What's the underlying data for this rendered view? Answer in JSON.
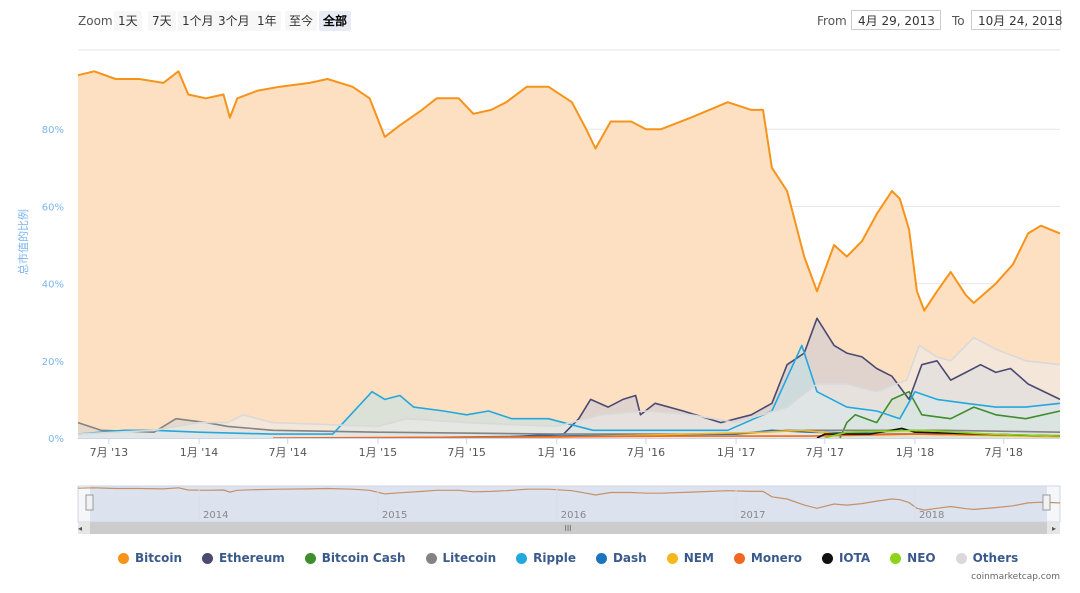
{
  "zoom": {
    "label": "Zoom",
    "buttons": [
      "1天",
      "7天",
      "1个月",
      "3个月",
      "1年",
      "至今",
      "全部"
    ],
    "active": "全部"
  },
  "range": {
    "from_label": "From",
    "from_value": "4月 29, 2013",
    "to_label": "To",
    "to_value": "10月 24, 2018"
  },
  "credit": "coinmarketcap.com",
  "navigator": {
    "year_labels": [
      "2014",
      "2015",
      "2016",
      "2017",
      "2018"
    ],
    "scroll_grip": "III"
  },
  "chart_data": {
    "type": "area",
    "title": "",
    "ylabel": "总市值的比例",
    "ylim": [
      0,
      100
    ],
    "yticks": [
      0,
      20,
      40,
      60,
      80
    ],
    "ytick_labels": [
      "0%",
      "20%",
      "40%",
      "60%",
      "80%"
    ],
    "xlim": [
      "2013-04-29",
      "2018-10-24"
    ],
    "xtick_labels": [
      {
        "date": "2013-07-01",
        "label": "7月 '13"
      },
      {
        "date": "2014-01-01",
        "label": "1月 '14"
      },
      {
        "date": "2014-07-01",
        "label": "7月 '14"
      },
      {
        "date": "2015-01-01",
        "label": "1月 '15"
      },
      {
        "date": "2015-07-01",
        "label": "7月 '15"
      },
      {
        "date": "2016-01-01",
        "label": "1月 '16"
      },
      {
        "date": "2016-07-01",
        "label": "7月 '16"
      },
      {
        "date": "2017-01-01",
        "label": "1月 '17"
      },
      {
        "date": "2017-07-01",
        "label": "7月 '17"
      },
      {
        "date": "2018-01-01",
        "label": "1月 '18"
      },
      {
        "date": "2018-07-01",
        "label": "7月 '18"
      }
    ],
    "grid": true,
    "legend_position": "bottom",
    "series": [
      {
        "name": "Bitcoin",
        "color": "#f7931a",
        "fill": "#fde0c2",
        "points": [
          [
            "2013-04-29",
            94
          ],
          [
            "2013-06-01",
            95
          ],
          [
            "2013-07-15",
            93
          ],
          [
            "2013-09-01",
            93
          ],
          [
            "2013-10-20",
            92
          ],
          [
            "2013-11-20",
            95
          ],
          [
            "2013-12-10",
            89
          ],
          [
            "2014-01-15",
            88
          ],
          [
            "2014-02-20",
            89
          ],
          [
            "2014-03-05",
            83
          ],
          [
            "2014-03-20",
            88
          ],
          [
            "2014-05-01",
            90
          ],
          [
            "2014-06-15",
            91
          ],
          [
            "2014-08-15",
            92
          ],
          [
            "2014-09-20",
            93
          ],
          [
            "2014-11-10",
            91
          ],
          [
            "2014-12-15",
            88
          ],
          [
            "2015-01-15",
            78
          ],
          [
            "2015-02-15",
            81
          ],
          [
            "2015-04-01",
            85
          ],
          [
            "2015-05-01",
            88
          ],
          [
            "2015-06-15",
            88
          ],
          [
            "2015-07-15",
            84
          ],
          [
            "2015-08-20",
            85
          ],
          [
            "2015-09-20",
            87
          ],
          [
            "2015-11-01",
            91
          ],
          [
            "2015-12-15",
            91
          ],
          [
            "2016-02-01",
            87
          ],
          [
            "2016-03-01",
            80
          ],
          [
            "2016-03-20",
            75
          ],
          [
            "2016-04-20",
            82
          ],
          [
            "2016-06-01",
            82
          ],
          [
            "2016-07-01",
            80
          ],
          [
            "2016-08-01",
            80
          ],
          [
            "2016-10-01",
            83
          ],
          [
            "2016-12-15",
            87
          ],
          [
            "2017-02-01",
            85
          ],
          [
            "2017-02-25",
            85
          ],
          [
            "2017-03-15",
            70
          ],
          [
            "2017-04-15",
            64
          ],
          [
            "2017-05-20",
            47
          ],
          [
            "2017-06-15",
            38
          ],
          [
            "2017-07-20",
            50
          ],
          [
            "2017-08-15",
            47
          ],
          [
            "2017-09-15",
            51
          ],
          [
            "2017-10-15",
            58
          ],
          [
            "2017-11-15",
            64
          ],
          [
            "2017-12-01",
            62
          ],
          [
            "2017-12-20",
            54
          ],
          [
            "2018-01-05",
            38
          ],
          [
            "2018-01-20",
            33
          ],
          [
            "2018-02-15",
            38
          ],
          [
            "2018-03-15",
            43
          ],
          [
            "2018-04-15",
            37
          ],
          [
            "2018-05-01",
            35
          ],
          [
            "2018-06-15",
            40
          ],
          [
            "2018-07-20",
            45
          ],
          [
            "2018-08-20",
            53
          ],
          [
            "2018-09-15",
            55
          ],
          [
            "2018-10-24",
            53
          ]
        ]
      },
      {
        "name": "Ethereum",
        "color": "#4a4a72",
        "fill": "#c9c6d6",
        "points": [
          [
            "2015-08-07",
            0
          ],
          [
            "2016-01-15",
            1
          ],
          [
            "2016-02-15",
            5
          ],
          [
            "2016-03-10",
            10
          ],
          [
            "2016-04-15",
            8
          ],
          [
            "2016-05-15",
            10
          ],
          [
            "2016-06-10",
            11
          ],
          [
            "2016-06-20",
            6
          ],
          [
            "2016-07-20",
            9
          ],
          [
            "2016-09-15",
            7
          ],
          [
            "2016-12-01",
            4
          ],
          [
            "2017-02-01",
            6
          ],
          [
            "2017-03-15",
            9
          ],
          [
            "2017-04-15",
            19
          ],
          [
            "2017-05-20",
            22
          ],
          [
            "2017-06-15",
            31
          ],
          [
            "2017-07-20",
            24
          ],
          [
            "2017-08-15",
            22
          ],
          [
            "2017-09-15",
            21
          ],
          [
            "2017-10-15",
            18
          ],
          [
            "2017-11-15",
            16
          ],
          [
            "2017-12-20",
            10
          ],
          [
            "2018-01-15",
            19
          ],
          [
            "2018-02-15",
            20
          ],
          [
            "2018-03-15",
            15
          ],
          [
            "2018-04-15",
            17
          ],
          [
            "2018-05-15",
            19
          ],
          [
            "2018-06-15",
            17
          ],
          [
            "2018-07-15",
            18
          ],
          [
            "2018-08-20",
            14
          ],
          [
            "2018-10-24",
            10
          ]
        ]
      },
      {
        "name": "Bitcoin Cash",
        "color": "#3f8d2c",
        "fill": "#b5d3a6",
        "points": [
          [
            "2017-08-01",
            0
          ],
          [
            "2017-08-15",
            4
          ],
          [
            "2017-09-01",
            6
          ],
          [
            "2017-10-15",
            4
          ],
          [
            "2017-11-15",
            10
          ],
          [
            "2017-12-20",
            12
          ],
          [
            "2018-01-15",
            6
          ],
          [
            "2018-03-15",
            5
          ],
          [
            "2018-05-01",
            8
          ],
          [
            "2018-06-15",
            6
          ],
          [
            "2018-08-15",
            5
          ],
          [
            "2018-10-24",
            7
          ]
        ]
      },
      {
        "name": "Litecoin",
        "color": "#838383",
        "fill": "#d4d4d4",
        "points": [
          [
            "2013-04-29",
            4
          ],
          [
            "2013-06-15",
            2
          ],
          [
            "2013-10-01",
            1.5
          ],
          [
            "2013-11-15",
            5
          ],
          [
            "2014-01-15",
            4
          ],
          [
            "2014-03-01",
            3
          ],
          [
            "2014-06-01",
            2
          ],
          [
            "2015-01-01",
            1.5
          ],
          [
            "2016-01-01",
            1
          ],
          [
            "2017-01-01",
            1
          ],
          [
            "2017-04-15",
            2
          ],
          [
            "2017-06-01",
            2
          ],
          [
            "2017-12-15",
            2
          ],
          [
            "2018-03-01",
            2
          ],
          [
            "2018-10-24",
            1.5
          ]
        ]
      },
      {
        "name": "Ripple",
        "color": "#23a8de",
        "fill": "#c0e2ea",
        "points": [
          [
            "2013-04-29",
            1
          ],
          [
            "2013-08-01",
            2
          ],
          [
            "2013-10-01",
            2
          ],
          [
            "2014-01-01",
            1.5
          ],
          [
            "2014-06-01",
            1
          ],
          [
            "2014-10-01",
            1
          ],
          [
            "2014-12-20",
            12
          ],
          [
            "2015-01-15",
            10
          ],
          [
            "2015-02-15",
            11
          ],
          [
            "2015-03-15",
            8
          ],
          [
            "2015-05-15",
            7
          ],
          [
            "2015-07-01",
            6
          ],
          [
            "2015-08-15",
            7
          ],
          [
            "2015-10-01",
            5
          ],
          [
            "2015-12-15",
            5
          ],
          [
            "2016-03-15",
            2
          ],
          [
            "2016-08-01",
            2
          ],
          [
            "2016-12-15",
            2
          ],
          [
            "2017-03-15",
            7
          ],
          [
            "2017-05-15",
            24
          ],
          [
            "2017-06-15",
            12
          ],
          [
            "2017-08-15",
            8
          ],
          [
            "2017-10-15",
            7
          ],
          [
            "2017-12-01",
            5
          ],
          [
            "2018-01-01",
            12
          ],
          [
            "2018-02-15",
            10
          ],
          [
            "2018-04-15",
            9
          ],
          [
            "2018-06-15",
            8
          ],
          [
            "2018-08-15",
            8
          ],
          [
            "2018-10-24",
            9
          ]
        ]
      },
      {
        "name": "Dash",
        "color": "#1c75bc",
        "fill": "#cfe1f1",
        "points": [
          [
            "2015-01-01",
            0
          ],
          [
            "2016-01-01",
            0.5
          ],
          [
            "2017-01-01",
            1
          ],
          [
            "2017-03-15",
            2
          ],
          [
            "2017-06-01",
            1.5
          ],
          [
            "2018-01-01",
            1
          ],
          [
            "2018-10-24",
            0.5
          ]
        ]
      },
      {
        "name": "NEM",
        "color": "#f4b71e",
        "fill": "#fbe6b3",
        "points": [
          [
            "2015-04-01",
            0
          ],
          [
            "2016-01-01",
            0.2
          ],
          [
            "2017-03-01",
            1.5
          ],
          [
            "2017-05-15",
            2
          ],
          [
            "2017-08-01",
            1
          ],
          [
            "2018-01-01",
            1
          ],
          [
            "2018-10-24",
            0.3
          ]
        ]
      },
      {
        "name": "Monero",
        "color": "#f26822",
        "fill": "#fbd1b9",
        "points": [
          [
            "2014-06-01",
            0
          ],
          [
            "2016-01-01",
            0.3
          ],
          [
            "2016-09-01",
            0.5
          ],
          [
            "2017-06-01",
            0.5
          ],
          [
            "2018-01-01",
            1
          ],
          [
            "2018-10-24",
            0.6
          ]
        ]
      },
      {
        "name": "IOTA",
        "color": "#111111",
        "fill": "#9a9a9a",
        "points": [
          [
            "2017-06-15",
            0
          ],
          [
            "2017-07-01",
            1
          ],
          [
            "2017-10-01",
            1
          ],
          [
            "2017-12-05",
            2.5
          ],
          [
            "2018-01-01",
            1.5
          ],
          [
            "2018-10-24",
            0.5
          ]
        ]
      },
      {
        "name": "NEO",
        "color": "#8ed21c",
        "fill": "#daf2b0",
        "points": [
          [
            "2017-07-01",
            0
          ],
          [
            "2017-08-15",
            1.5
          ],
          [
            "2018-01-15",
            2
          ],
          [
            "2018-06-01",
            1
          ],
          [
            "2018-10-24",
            0.5
          ]
        ]
      },
      {
        "name": "Others",
        "color": "#d9d9d9",
        "fill": "#ececec",
        "points": [
          [
            "2013-04-29",
            1
          ],
          [
            "2013-10-01",
            2
          ],
          [
            "2014-01-01",
            4
          ],
          [
            "2014-03-01",
            4
          ],
          [
            "2014-04-01",
            6
          ],
          [
            "2014-06-01",
            4
          ],
          [
            "2015-01-01",
            3
          ],
          [
            "2015-03-01",
            5
          ],
          [
            "2015-07-01",
            4
          ],
          [
            "2016-01-01",
            3
          ],
          [
            "2016-04-01",
            6
          ],
          [
            "2016-07-01",
            7
          ],
          [
            "2016-10-01",
            6
          ],
          [
            "2017-01-01",
            4
          ],
          [
            "2017-04-15",
            8
          ],
          [
            "2017-06-15",
            14
          ],
          [
            "2017-08-15",
            14
          ],
          [
            "2017-10-15",
            12
          ],
          [
            "2017-12-15",
            15
          ],
          [
            "2018-01-10",
            24
          ],
          [
            "2018-02-15",
            21
          ],
          [
            "2018-03-15",
            20
          ],
          [
            "2018-05-01",
            26
          ],
          [
            "2018-06-15",
            23
          ],
          [
            "2018-08-15",
            20
          ],
          [
            "2018-10-24",
            19
          ]
        ]
      }
    ]
  }
}
